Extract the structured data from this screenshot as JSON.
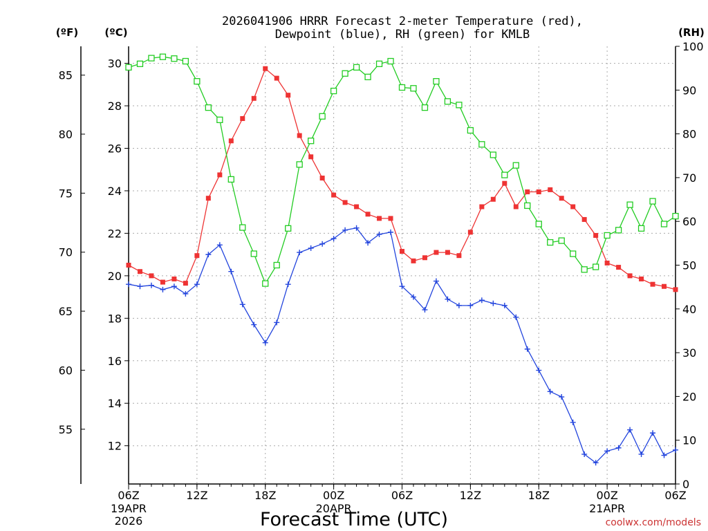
{
  "chart_data": {
    "type": "line",
    "title": {
      "line1": "2026041906 HRRR Forecast 2-meter Temperature (red),",
      "line2": "Dewpoint (blue), RH (green) for KMLB"
    },
    "units": {
      "fahrenheit": "(ºF)",
      "celsius": "(ºC)",
      "rh": "(RH)"
    },
    "xlabel": "Forecast Time (UTC)",
    "credit": "coolwx.com/models",
    "x_hours": [
      0,
      1,
      2,
      3,
      4,
      5,
      6,
      7,
      8,
      9,
      10,
      11,
      12,
      13,
      14,
      15,
      16,
      17,
      18,
      19,
      20,
      21,
      22,
      23,
      24,
      25,
      26,
      27,
      28,
      29,
      30,
      31,
      32,
      33,
      34,
      35,
      36,
      37,
      38,
      39,
      40,
      41,
      42,
      43,
      44,
      45,
      46,
      47,
      48
    ],
    "xlim": [
      0,
      48
    ],
    "x_ticks": [
      {
        "hour": 0,
        "label": "06Z",
        "date1": "19APR",
        "date2": "2026"
      },
      {
        "hour": 6,
        "label": "12Z"
      },
      {
        "hour": 12,
        "label": "18Z"
      },
      {
        "hour": 18,
        "label": "00Z",
        "date1": "20APR"
      },
      {
        "hour": 24,
        "label": "06Z"
      },
      {
        "hour": 30,
        "label": "12Z"
      },
      {
        "hour": 36,
        "label": "18Z"
      },
      {
        "hour": 42,
        "label": "00Z",
        "date1": "21APR"
      },
      {
        "hour": 48,
        "label": "06Z"
      }
    ],
    "ylim_celsius": [
      10.2,
      30.8
    ],
    "celsius_ticks": [
      12,
      14,
      16,
      18,
      20,
      22,
      24,
      26,
      28,
      30
    ],
    "fahrenheit_ticks": [
      55,
      60,
      65,
      70,
      75,
      80,
      85
    ],
    "ylim_rh": [
      0,
      100
    ],
    "rh_ticks": [
      0,
      10,
      20,
      30,
      40,
      50,
      60,
      70,
      80,
      90,
      100
    ],
    "series": [
      {
        "name": "Temperature",
        "color": "#ee3333",
        "marker": "filled-square",
        "axis": "celsius",
        "values": [
          20.5,
          20.2,
          20.0,
          19.7,
          19.85,
          19.65,
          20.95,
          23.65,
          24.75,
          26.35,
          27.4,
          28.35,
          29.75,
          29.3,
          28.5,
          26.6,
          25.6,
          24.6,
          23.8,
          23.45,
          23.25,
          22.9,
          22.7,
          22.7,
          21.15,
          20.7,
          20.85,
          21.1,
          21.1,
          20.95,
          22.05,
          23.25,
          23.6,
          24.35,
          23.25,
          23.95,
          23.95,
          24.05,
          23.65,
          23.25,
          22.65,
          21.9,
          20.6,
          20.4,
          20.0,
          19.85,
          19.6,
          19.5,
          19.35
        ]
      },
      {
        "name": "Dewpoint",
        "color": "#2244dd",
        "marker": "plus",
        "axis": "celsius",
        "values": [
          19.6,
          19.5,
          19.55,
          19.35,
          19.5,
          19.15,
          19.6,
          21.0,
          21.45,
          20.2,
          18.65,
          17.7,
          16.85,
          17.8,
          19.6,
          21.1,
          21.3,
          21.5,
          21.75,
          22.15,
          22.25,
          21.55,
          21.95,
          22.05,
          19.5,
          19.0,
          18.4,
          19.75,
          18.9,
          18.6,
          18.6,
          18.85,
          18.7,
          18.6,
          18.05,
          16.55,
          15.55,
          14.55,
          14.3,
          13.1,
          11.6,
          11.2,
          11.75,
          11.9,
          12.75,
          11.6,
          12.6,
          11.55,
          11.8
        ]
      },
      {
        "name": "RH",
        "color": "#22cc22",
        "marker": "open-square",
        "axis": "rh",
        "values": [
          95.2,
          96.0,
          97.3,
          97.6,
          97.2,
          96.6,
          92.0,
          86.0,
          83.2,
          69.6,
          58.6,
          52.6,
          45.8,
          50.0,
          58.4,
          73.0,
          78.4,
          84.0,
          89.8,
          93.8,
          95.2,
          93.0,
          96.0,
          96.6,
          90.6,
          90.4,
          86.0,
          92.0,
          87.4,
          86.6,
          80.8,
          77.6,
          75.2,
          70.6,
          72.8,
          63.6,
          59.4,
          55.2,
          55.6,
          52.6,
          49.0,
          49.6,
          56.8,
          58.0,
          63.8,
          58.4,
          64.6,
          59.4,
          61.2
        ]
      }
    ]
  }
}
